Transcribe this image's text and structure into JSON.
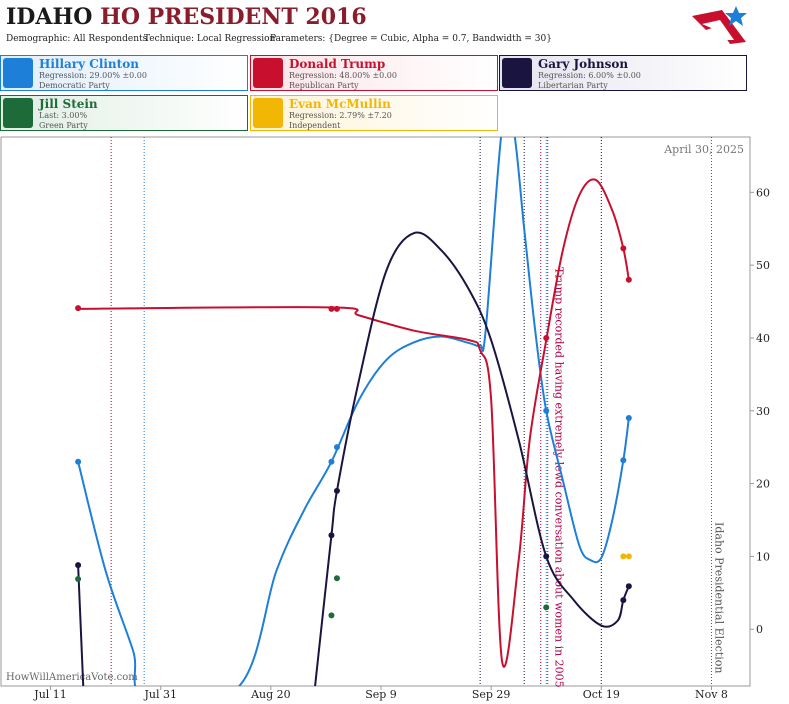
{
  "header": {
    "state": "IDAHO",
    "title": "HO PRESIDENT 2016",
    "demographic": "Demographic: All Respondents",
    "technique": "Technique: Local Regression",
    "parameters": "Parameters: {Degree = Cubic, Alpha = 0.7, Bandwidth = 30}"
  },
  "chart_data": {
    "type": "line",
    "date_stamp": "April 30, 2025",
    "watermark": "HowWillAmericaVote.com",
    "xlim": [
      "Jul 2",
      "Nov 15"
    ],
    "xticks": [
      "Jul 11",
      "Jul 31",
      "Aug 20",
      "Sep 9",
      "Sep 29",
      "Oct 19",
      "Nov 8"
    ],
    "ylim": [
      -7.8,
      67.6
    ],
    "yticks": [
      0,
      10,
      20,
      30,
      40,
      50,
      60
    ],
    "events": [
      {
        "x": "Jul 22",
        "color": "#b0004a"
      },
      {
        "x": "Jul 28",
        "color": "#1e7fd8"
      },
      {
        "x": "Sep 27",
        "color": "#1a1440"
      },
      {
        "x": "Oct 5",
        "color": "#1a1440"
      },
      {
        "x": "Oct 8",
        "color": "#b0004a"
      },
      {
        "x": "Oct 9",
        "color": "#1e7fd8"
      },
      {
        "x": "Oct 19",
        "color": "#1a1440"
      },
      {
        "x": "Oct 10",
        "color": "#b0004a",
        "label": "Trump recorded having extremely lewd conversation about women in 2005"
      },
      {
        "x": "Nov 8",
        "color": "#555555",
        "label": "Idaho Presidential Election"
      }
    ],
    "series": [
      {
        "name": "Hillary Clinton",
        "summary": "Regression: 29.00% ±0.00",
        "party": "Democratic Party",
        "color": "#1e7fd8",
        "curve": {
          "x": [
            "Jul 16",
            "Jul 21",
            "Jul 26",
            "Jul 28",
            "Aug 14",
            "Aug 21",
            "Aug 26",
            "Aug 31",
            "Sep 5",
            "Sep 10",
            "Sep 15",
            "Sep 20",
            "Sep 25",
            "Sep 27",
            "Sep 28",
            "Oct 1",
            "Oct 3",
            "Oct 5",
            "Oct 7",
            "Oct 9",
            "Oct 12",
            "Oct 15",
            "Oct 17",
            "Oct 19",
            "Oct 21",
            "Oct 23",
            "Oct 24"
          ],
          "values": [
            23,
            8,
            -3,
            -9,
            -8,
            8,
            16.3,
            23,
            31.5,
            37,
            39.4,
            40.2,
            39.3,
            39,
            41,
            69,
            69,
            55,
            41,
            30,
            20.5,
            11.5,
            9.5,
            9.8,
            15,
            23.2,
            29
          ]
        },
        "points": {
          "x": [
            "Jul 16",
            "Aug 31",
            "Sep 1",
            "Oct 9",
            "Oct 23",
            "Oct 24"
          ],
          "values": [
            23,
            23,
            25,
            30,
            23.2,
            29
          ]
        }
      },
      {
        "name": "Donald Trump",
        "summary": "Regression: 48.00% ±0.00",
        "party": "Republican Party",
        "color": "#c8102e",
        "curve": {
          "x": [
            "Jul 16",
            "Aug 31",
            "Sep 5",
            "Sep 15",
            "Sep 25",
            "Sep 27",
            "Sep 29",
            "Oct 1",
            "Oct 4",
            "Oct 6",
            "Oct 9",
            "Oct 12",
            "Oct 15",
            "Oct 18",
            "Oct 21",
            "Oct 23",
            "Oct 24"
          ],
          "values": [
            44,
            44.2,
            43.1,
            41,
            39.7,
            38.3,
            31.5,
            -4.5,
            9.5,
            26,
            39.7,
            52,
            59.6,
            61.7,
            57.5,
            52.3,
            48
          ]
        },
        "points": {
          "x": [
            "Jul 16",
            "Aug 31",
            "Sep 1",
            "Oct 9",
            "Oct 23",
            "Oct 24"
          ],
          "values": [
            44.1,
            44,
            44,
            40,
            52.3,
            48
          ]
        }
      },
      {
        "name": "Gary Johnson",
        "summary": "Regression: 6.00% ±0.00",
        "party": "Libertarian Party",
        "color": "#1a1440",
        "curve": {
          "x": [
            "Jul 16",
            "Jul 17",
            null,
            "Aug 28",
            "Aug 31",
            "Sep 1",
            "Sep 5",
            "Sep 10",
            "Sep 15",
            "Sep 20",
            "Sep 25",
            "Sep 29",
            "Oct 4",
            "Oct 9",
            "Oct 14",
            "Oct 19",
            "Oct 22",
            "Oct 23",
            "Oct 24"
          ],
          "values": [
            8.8,
            -9,
            null,
            -8,
            12.9,
            19,
            34.2,
            49.3,
            54.4,
            52,
            46.6,
            39.7,
            26,
            10,
            4,
            0.5,
            1.2,
            4,
            5.9
          ]
        },
        "points": {
          "x": [
            "Jul 16",
            "Aug 31",
            "Sep 1",
            "Oct 9",
            "Oct 23",
            "Oct 24"
          ],
          "values": [
            8.8,
            12.9,
            19,
            10,
            4,
            5.9
          ]
        }
      },
      {
        "name": "Jill Stein",
        "summary": "Last: 3.00%",
        "party": "Green Party",
        "color": "#1e6b3a",
        "points": {
          "x": [
            "Jul 16",
            "Aug 31",
            "Sep 1",
            "Oct 9"
          ],
          "values": [
            6.9,
            1.9,
            7,
            3
          ]
        }
      },
      {
        "name": "Evan McMullin",
        "summary": "Regression: 2.79% ±7.20",
        "party": "Independent",
        "color": "#f2b705",
        "points": {
          "x": [
            "Oct 23",
            "Oct 24"
          ],
          "values": [
            10,
            10
          ]
        }
      }
    ]
  }
}
